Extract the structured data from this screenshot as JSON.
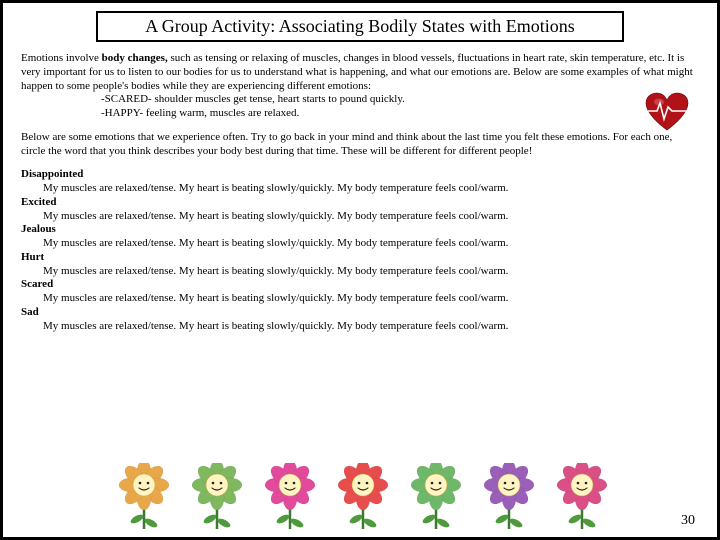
{
  "title": "A Group Activity:  Associating Bodily States with Emotions",
  "intro_text": "Emotions involve ",
  "intro_bold": "body changes,",
  "intro_cont": " such as tensing or relaxing of muscles, changes in blood vessels, fluctuations in heart rate, skin temperature, etc.  It is very important for us to listen to our bodies for us to understand what is happening, and what our emotions are.   Below are some examples of what might happen to some people's bodies while they are experiencing different emotions:",
  "example1": "-SCARED- shoulder muscles get tense, heart starts to pound quickly.",
  "example2": "-HAPPY- feeling warm, muscles are relaxed.",
  "instructions": "Below are some emotions that we experience often.  Try to go back in your mind and think about the last time you felt these emotions.  For each one, circle the word that you think describes your body best during that time.  These will be different for different people!",
  "stmt": "My muscles are relaxed/tense.  My heart is beating slowly/quickly.  My  body temperature feels cool/warm.",
  "emotions": [
    "Disappointed",
    "Excited",
    "Jealous",
    "Hurt",
    "Scared",
    "Sad"
  ],
  "page_number": "30",
  "heart": {
    "fill": "#b01217",
    "shine": "#e06a6d",
    "ekg": "#fefefe"
  },
  "flowers": [
    {
      "petal": "#e8a84a",
      "center": "#fff4c2"
    },
    {
      "petal": "#7fb85f",
      "center": "#fff4c2"
    },
    {
      "petal": "#e24a9c",
      "center": "#fff4c2"
    },
    {
      "petal": "#e84d4d",
      "center": "#fff4c2"
    },
    {
      "petal": "#6fb86a",
      "center": "#fff4c2"
    },
    {
      "petal": "#9a5fb8",
      "center": "#fff4c2"
    },
    {
      "petal": "#d94f86",
      "center": "#fff4c2"
    }
  ],
  "stem_color": "#3a7a2e",
  "leaf_color": "#4e9a3c"
}
